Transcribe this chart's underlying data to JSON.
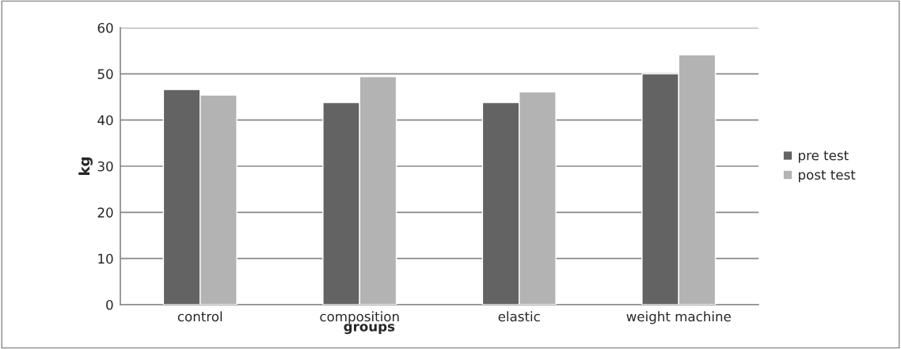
{
  "chart_data": {
    "type": "bar",
    "xlabel": "groups",
    "ylabel": "kg",
    "categories": [
      "control",
      "composition",
      "elastic",
      "weight machine"
    ],
    "series": [
      {
        "name": "pre test",
        "color": "#636363",
        "values": [
          46.6,
          43.8,
          43.8,
          50.0
        ]
      },
      {
        "name": "post test",
        "color": "#b3b3b3",
        "values": [
          45.4,
          49.4,
          46.1,
          54.1
        ]
      }
    ],
    "ylim": [
      0,
      60
    ],
    "yticks": [
      0,
      10,
      20,
      30,
      40,
      50,
      60
    ],
    "grid": "y",
    "legend": "right"
  }
}
